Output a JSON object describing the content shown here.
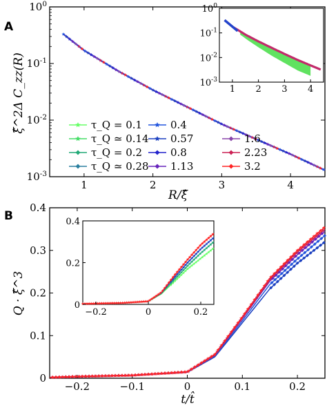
{
  "panels": [
    {
      "label": "A",
      "xlabel": "R/ξ̂",
      "ylabel": "ξ̂^2Δ C_zz(R)",
      "x_ticks": [
        "1",
        "2",
        "3",
        "4"
      ],
      "y_ticks": [
        "10^0",
        "10^-1",
        "10^-2",
        "10^-3"
      ],
      "inset_x_ticks": [
        "1",
        "2",
        "3",
        "4"
      ],
      "inset_y_ticks": [
        "10^0",
        "10^-1",
        "10^-2",
        "10^-3"
      ]
    },
    {
      "label": "B",
      "xlabel": "t/t̂",
      "ylabel": "Q · ξ̂^3",
      "x_ticks": [
        "−0.2",
        "−0.1",
        "0",
        "0.1",
        "0.2"
      ],
      "y_ticks": [
        "0",
        "0.1",
        "0.2",
        "0.3",
        "0.4"
      ],
      "inset_x_ticks": [
        "−0.2",
        "0",
        "0.2"
      ],
      "inset_y_ticks": [
        "0",
        "0.2",
        "0.4"
      ]
    }
  ],
  "legend": [
    {
      "text": "τ_Q = 0.1",
      "color": "#66ff66"
    },
    {
      "text": "0.4",
      "color": "#2255dd"
    },
    {
      "text": "τ_Q ≃ 0.14",
      "color": "#44dd66"
    },
    {
      "text": "0.57",
      "color": "#1a3fc0"
    },
    {
      "text": "1.6",
      "color": "#8844aa"
    },
    {
      "text": "τ_Q = 0.2",
      "color": "#22aa77"
    },
    {
      "text": "0.8",
      "color": "#2222cc"
    },
    {
      "text": "2.23",
      "color": "#cc2255"
    },
    {
      "text": "τ_Q ≃ 0.28",
      "color": "#2a7f9f"
    },
    {
      "text": "1.13",
      "color": "#6622bb"
    },
    {
      "text": "3.2",
      "color": "#ff2222"
    }
  ],
  "chart_data": [
    {
      "type": "line",
      "panel": "A",
      "y_scale": "log",
      "xlim": [
        0.5,
        4.5
      ],
      "ylim": [
        0.001,
        1
      ],
      "series_colors": [
        "#66ff66",
        "#44dd66",
        "#22aa77",
        "#2a7f9f",
        "#2255dd",
        "#1a3fc0",
        "#2222cc",
        "#6622bb",
        "#8844aa",
        "#cc2255",
        "#ff2222"
      ],
      "main": {
        "x": [
          0.7,
          1.0,
          1.5,
          2.0,
          2.5,
          3.0,
          3.5,
          4.0,
          4.5
        ],
        "y": [
          0.33,
          0.17,
          0.073,
          0.034,
          0.017,
          0.0085,
          0.0046,
          0.0025,
          0.0013
        ]
      },
      "inset": {
        "xlim": [
          0.5,
          4.5
        ],
        "ylim": [
          0.001,
          1
        ],
        "upper": {
          "x": [
            0.7,
            1.0,
            1.5,
            2.0,
            2.5,
            3.0,
            3.5,
            4.0,
            4.4
          ],
          "y": [
            0.33,
            0.18,
            0.085,
            0.045,
            0.025,
            0.014,
            0.008,
            0.0048,
            0.0032
          ]
        },
        "lower": {
          "x": [
            1.3,
            1.6,
            2.0,
            2.5,
            3.0,
            3.5,
            4.0
          ],
          "y": [
            0.085,
            0.05,
            0.026,
            0.012,
            0.006,
            0.003,
            0.0018
          ]
        }
      }
    },
    {
      "type": "line",
      "panel": "B",
      "xlim": [
        -0.25,
        0.25
      ],
      "ylim": [
        0,
        0.4
      ],
      "series": [
        {
          "color": "#1a3fc0",
          "x": [
            -0.25,
            -0.2,
            -0.1,
            0.0,
            0.05,
            0.1,
            0.15,
            0.2,
            0.25
          ],
          "y": [
            0.002,
            0.004,
            0.007,
            0.014,
            0.05,
            0.13,
            0.21,
            0.27,
            0.32
          ]
        },
        {
          "color": "#2255dd",
          "x": [
            -0.25,
            -0.2,
            -0.1,
            0.0,
            0.05,
            0.1,
            0.15,
            0.2,
            0.25
          ],
          "y": [
            0.002,
            0.004,
            0.007,
            0.015,
            0.052,
            0.135,
            0.22,
            0.28,
            0.335
          ]
        },
        {
          "color": "#6622bb",
          "x": [
            -0.25,
            -0.2,
            -0.1,
            0.0,
            0.05,
            0.1,
            0.15,
            0.2,
            0.25
          ],
          "y": [
            0.002,
            0.004,
            0.007,
            0.015,
            0.054,
            0.14,
            0.228,
            0.29,
            0.345
          ]
        },
        {
          "color": "#cc2255",
          "x": [
            -0.25,
            -0.2,
            -0.1,
            0.0,
            0.05,
            0.1,
            0.15,
            0.2,
            0.25
          ],
          "y": [
            0.002,
            0.004,
            0.007,
            0.015,
            0.055,
            0.142,
            0.232,
            0.296,
            0.35
          ]
        },
        {
          "color": "#ff2222",
          "x": [
            -0.25,
            -0.2,
            -0.1,
            0.0,
            0.05,
            0.1,
            0.15,
            0.2,
            0.25
          ],
          "y": [
            0.002,
            0.004,
            0.007,
            0.015,
            0.056,
            0.144,
            0.235,
            0.3,
            0.355
          ]
        }
      ],
      "inset": {
        "xlim": [
          -0.25,
          0.25
        ],
        "ylim": [
          0,
          0.4
        ],
        "series": [
          {
            "color": "#66ff66",
            "x": [
              -0.25,
              -0.1,
              0.0,
              0.05,
              0.1,
              0.15,
              0.2,
              0.25
            ],
            "y": [
              0.003,
              0.007,
              0.014,
              0.05,
              0.11,
              0.17,
              0.22,
              0.27
            ]
          },
          {
            "color": "#22aa77",
            "x": [
              -0.25,
              -0.1,
              0.0,
              0.05,
              0.1,
              0.15,
              0.2,
              0.25
            ],
            "y": [
              0.003,
              0.007,
              0.014,
              0.052,
              0.12,
              0.185,
              0.245,
              0.3
            ]
          },
          {
            "color": "#1a3fc0",
            "x": [
              -0.25,
              -0.1,
              0.0,
              0.05,
              0.1,
              0.15,
              0.2,
              0.25
            ],
            "y": [
              0.003,
              0.007,
              0.015,
              0.055,
              0.13,
              0.2,
              0.265,
              0.32
            ]
          },
          {
            "color": "#ff2222",
            "x": [
              -0.25,
              -0.1,
              0.0,
              0.05,
              0.1,
              0.15,
              0.2,
              0.25
            ],
            "y": [
              0.003,
              0.007,
              0.015,
              0.058,
              0.14,
              0.215,
              0.285,
              0.34
            ]
          }
        ]
      }
    }
  ]
}
